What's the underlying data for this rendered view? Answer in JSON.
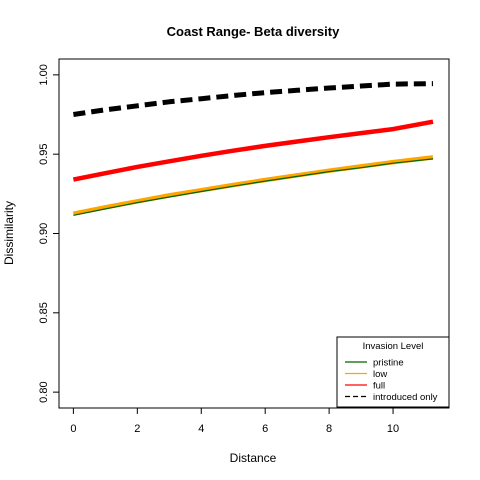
{
  "chart_data": {
    "type": "line",
    "title": "Coast Range- Beta diversity",
    "xlabel": "Distance",
    "ylabel": "Dissimilarity",
    "xlim": [
      -0.45,
      11.75
    ],
    "ylim": [
      0.79,
      1.01
    ],
    "xticks": [
      "0",
      "2",
      "4",
      "6",
      "8",
      "10"
    ],
    "yticks": [
      "0.80",
      "0.85",
      "0.90",
      "0.95",
      "1.00"
    ],
    "grid": false,
    "legend": {
      "title": "Invasion Level",
      "placement": "bottom-right",
      "entries": [
        "pristine",
        "low",
        "full",
        "introduced only"
      ]
    },
    "series": [
      {
        "name": "pristine",
        "color": "#006400",
        "dashed": false,
        "x": [
          0,
          1,
          2,
          3,
          4,
          5,
          6,
          7,
          8,
          9,
          10,
          11.25
        ],
        "y": [
          0.9115,
          0.9155,
          0.9195,
          0.923,
          0.9265,
          0.9298,
          0.933,
          0.936,
          0.939,
          0.9415,
          0.9443,
          0.947
        ]
      },
      {
        "name": "low",
        "color": "#FFA500",
        "dashed": false,
        "x": [
          0,
          1,
          2,
          3,
          4,
          5,
          6,
          7,
          8,
          9,
          10,
          11.25
        ],
        "y": [
          0.9125,
          0.9165,
          0.9203,
          0.924,
          0.9273,
          0.9306,
          0.9337,
          0.9367,
          0.9396,
          0.9423,
          0.945,
          0.948
        ]
      },
      {
        "name": "full",
        "color": "#FF0000",
        "dashed": false,
        "x": [
          0,
          1,
          2,
          3,
          4,
          5,
          6,
          7,
          8,
          9,
          10,
          11.25
        ],
        "y": [
          0.934,
          0.938,
          0.942,
          0.9455,
          0.949,
          0.9522,
          0.9552,
          0.958,
          0.9607,
          0.9633,
          0.9658,
          0.9705
        ]
      },
      {
        "name": "introduced only",
        "color": "#000000",
        "dashed": true,
        "x": [
          0,
          1,
          2,
          3,
          4,
          5,
          6,
          7,
          8,
          9,
          10,
          11.25
        ],
        "y": [
          0.975,
          0.978,
          0.9805,
          0.983,
          0.985,
          0.987,
          0.9888,
          0.9903,
          0.9917,
          0.993,
          0.9942,
          0.9945
        ]
      }
    ]
  }
}
